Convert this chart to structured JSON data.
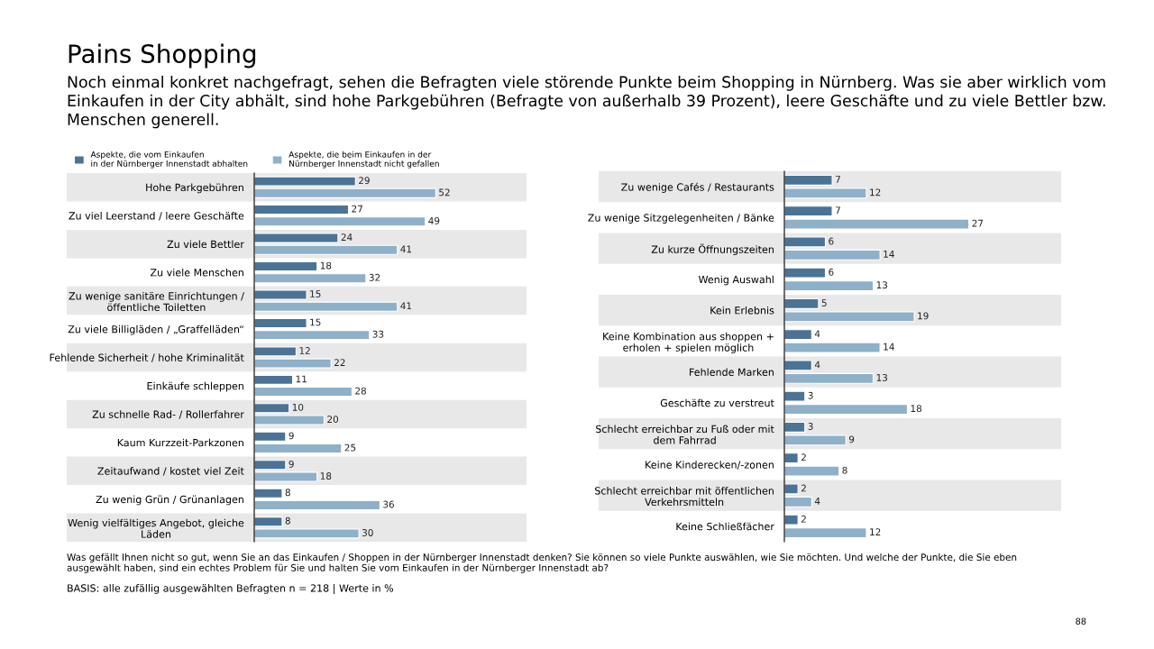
{
  "chart_data": [
    {
      "type": "bar",
      "orientation": "horizontal",
      "title": "Pains Shopping",
      "subtitle": "Noch einmal konkret nachgefragt, sehen die Befragten viele störende Punkte beim Shopping in Nürnberg. Was sie aber wirklich vom Einkaufen in der City abhält, sind hohe Parkgebühren (Befragte von außerhalb 39 Prozent), leere Geschäfte und zu viele Bettler bzw. Menschen generell.",
      "categories": [
        "Hohe Parkgebühren",
        "Zu viel Leerstand / leere Geschäfte",
        "Zu viele Bettler",
        "Zu viele Menschen",
        "Zu wenige sanitäre Einrichtungen /\nöffentliche Toiletten",
        "Zu viele Billigläden / „Graffelläden“",
        "Fehlende Sicherheit / hohe Kriminalität",
        "Einkäufe schleppen",
        "Zu schnelle Rad- / Rollerfahrer",
        "Kaum Kurzzeit-Parkzonen",
        "Zeitaufwand / kostet viel Zeit",
        "Zu wenig Grün / Grünanlagen",
        "Wenig vielfältiges Angebot, gleiche\nLäden"
      ],
      "series": [
        {
          "name": "Aspekte, die vom Einkaufen\nin der Nürnberger Innenstadt abhalten",
          "color": "#4a7396",
          "values": [
            29,
            27,
            24,
            18,
            15,
            15,
            12,
            11,
            10,
            9,
            9,
            8,
            8
          ]
        },
        {
          "name": "Aspekte, die beim Einkaufen in der\nNürnberger Innenstadt nicht gefallen",
          "color": "#8fb0c9",
          "values": [
            52,
            49,
            41,
            32,
            41,
            33,
            22,
            28,
            20,
            25,
            18,
            36,
            30
          ]
        }
      ],
      "tick_labels": "y",
      "data_labels": true,
      "legend": "top",
      "annotations": [
        "Was gefällt Ihnen nicht so gut, wenn Sie an das Einkaufen / Shoppen in der Nürnberger Innenstadt denken? Sie können so viele Punkte auswählen, wie Sie möchten. Und welche der Punkte, die Sie eben\nausgewählt haben, sind ein echtes Problem für Sie und halten Sie vom Einkaufen in der Nürnberger Innenstadt ab?",
        "BASIS: alle zufällig ausgewählten Befragten n = 218 | Werte in %",
        "88"
      ]
    },
    {
      "type": "bar",
      "orientation": "horizontal",
      "categories": [
        "Zu wenige Cafés / Restaurants",
        "Zu wenige Sitzgelegenheiten / Bänke",
        "Zu kurze Öffnungszeiten",
        "Wenig Auswahl",
        "Kein Erlebnis",
        "Keine Kombination aus shoppen +\nerholen + spielen möglich",
        "Fehlende Marken",
        "Geschäfte zu verstreut",
        "Schlecht erreichbar zu Fuß oder mit\ndem Fahrrad",
        "Keine Kinderecken/-zonen",
        "Schlecht erreichbar mit öffentlichen\nVerkehrsmitteln",
        "Keine Schließfächer"
      ],
      "series": [
        {
          "color": "#4a7396",
          "values": [
            7,
            7,
            6,
            6,
            5,
            4,
            4,
            3,
            3,
            2,
            2,
            2
          ]
        },
        {
          "color": "#8fb0c9",
          "values": [
            12,
            27,
            14,
            13,
            19,
            14,
            13,
            18,
            9,
            8,
            4,
            12
          ]
        }
      ],
      "tick_labels": "y",
      "data_labels": true
    }
  ]
}
